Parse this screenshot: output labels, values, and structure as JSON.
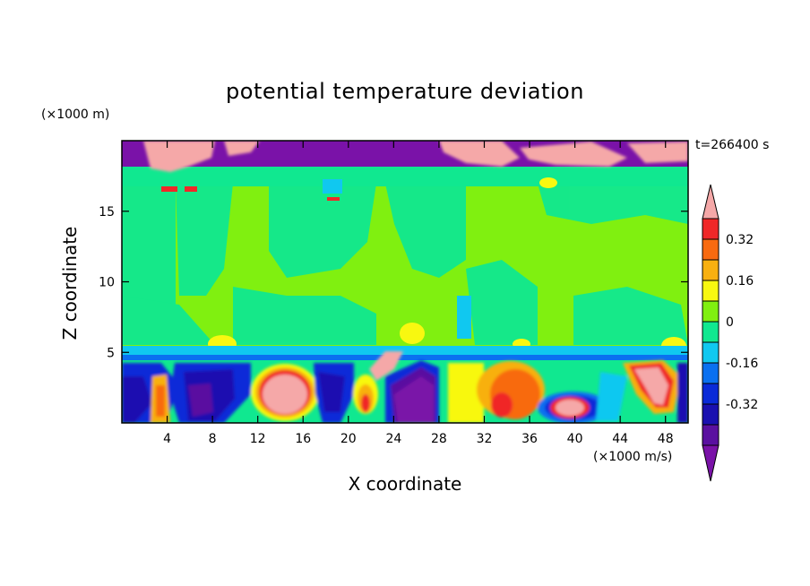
{
  "chart_data": {
    "type": "heatmap",
    "title": "potential temperature deviation",
    "xlabel": "X coordinate",
    "ylabel": "Z coordinate",
    "x_unit": "(×1000 m/s)",
    "y_unit": "(×1000 m)",
    "time_label": "t=266400 s",
    "xlim": [
      0,
      50
    ],
    "ylim": [
      0,
      20
    ],
    "x_ticks": [
      "4",
      "8",
      "12",
      "16",
      "20",
      "24",
      "28",
      "32",
      "36",
      "40",
      "44",
      "48"
    ],
    "y_ticks": [
      "5",
      "10",
      "15"
    ],
    "colorbar": {
      "levels": [
        -0.48,
        -0.4,
        -0.32,
        -0.24,
        -0.16,
        -0.08,
        0,
        0.08,
        0.16,
        0.24,
        0.32,
        0.4
      ],
      "labels": [
        "0.32",
        "0.16",
        "0",
        "-0.16",
        "-0.32"
      ],
      "colors": {
        "lt_-0.48": "#7a12a8",
        "-0.48_-0.40": "#5a10a0",
        "-0.40_-0.32": "#1a10b0",
        "-0.32_-0.24": "#0a2ad8",
        "-0.24_-0.16": "#0a70f0",
        "-0.16_-0.08": "#10c8f0",
        "-0.08_0": "#10e890",
        "0_0.08": "#80f010",
        "0.08_0.16": "#f8f810",
        "0.16_0.24": "#f8b010",
        "0.24_0.32": "#f86a10",
        "0.32_0.40": "#f02828",
        "gt_0.40": "#f5a8a8"
      }
    },
    "regions": [
      {
        "zone": "upper stratosphere z>18",
        "level": "lt_-0.48"
      },
      {
        "zone": "pockets near z 18-19.5",
        "level": "gt_0.40"
      },
      {
        "zone": "main troposphere z 4.5-17.5",
        "level": "0_0.08"
      },
      {
        "zone": "band near z 4.5-5",
        "level": "-0.16_-0.08"
      },
      {
        "zone": "boundary layer z<4.5",
        "level": "mixed"
      }
    ]
  }
}
